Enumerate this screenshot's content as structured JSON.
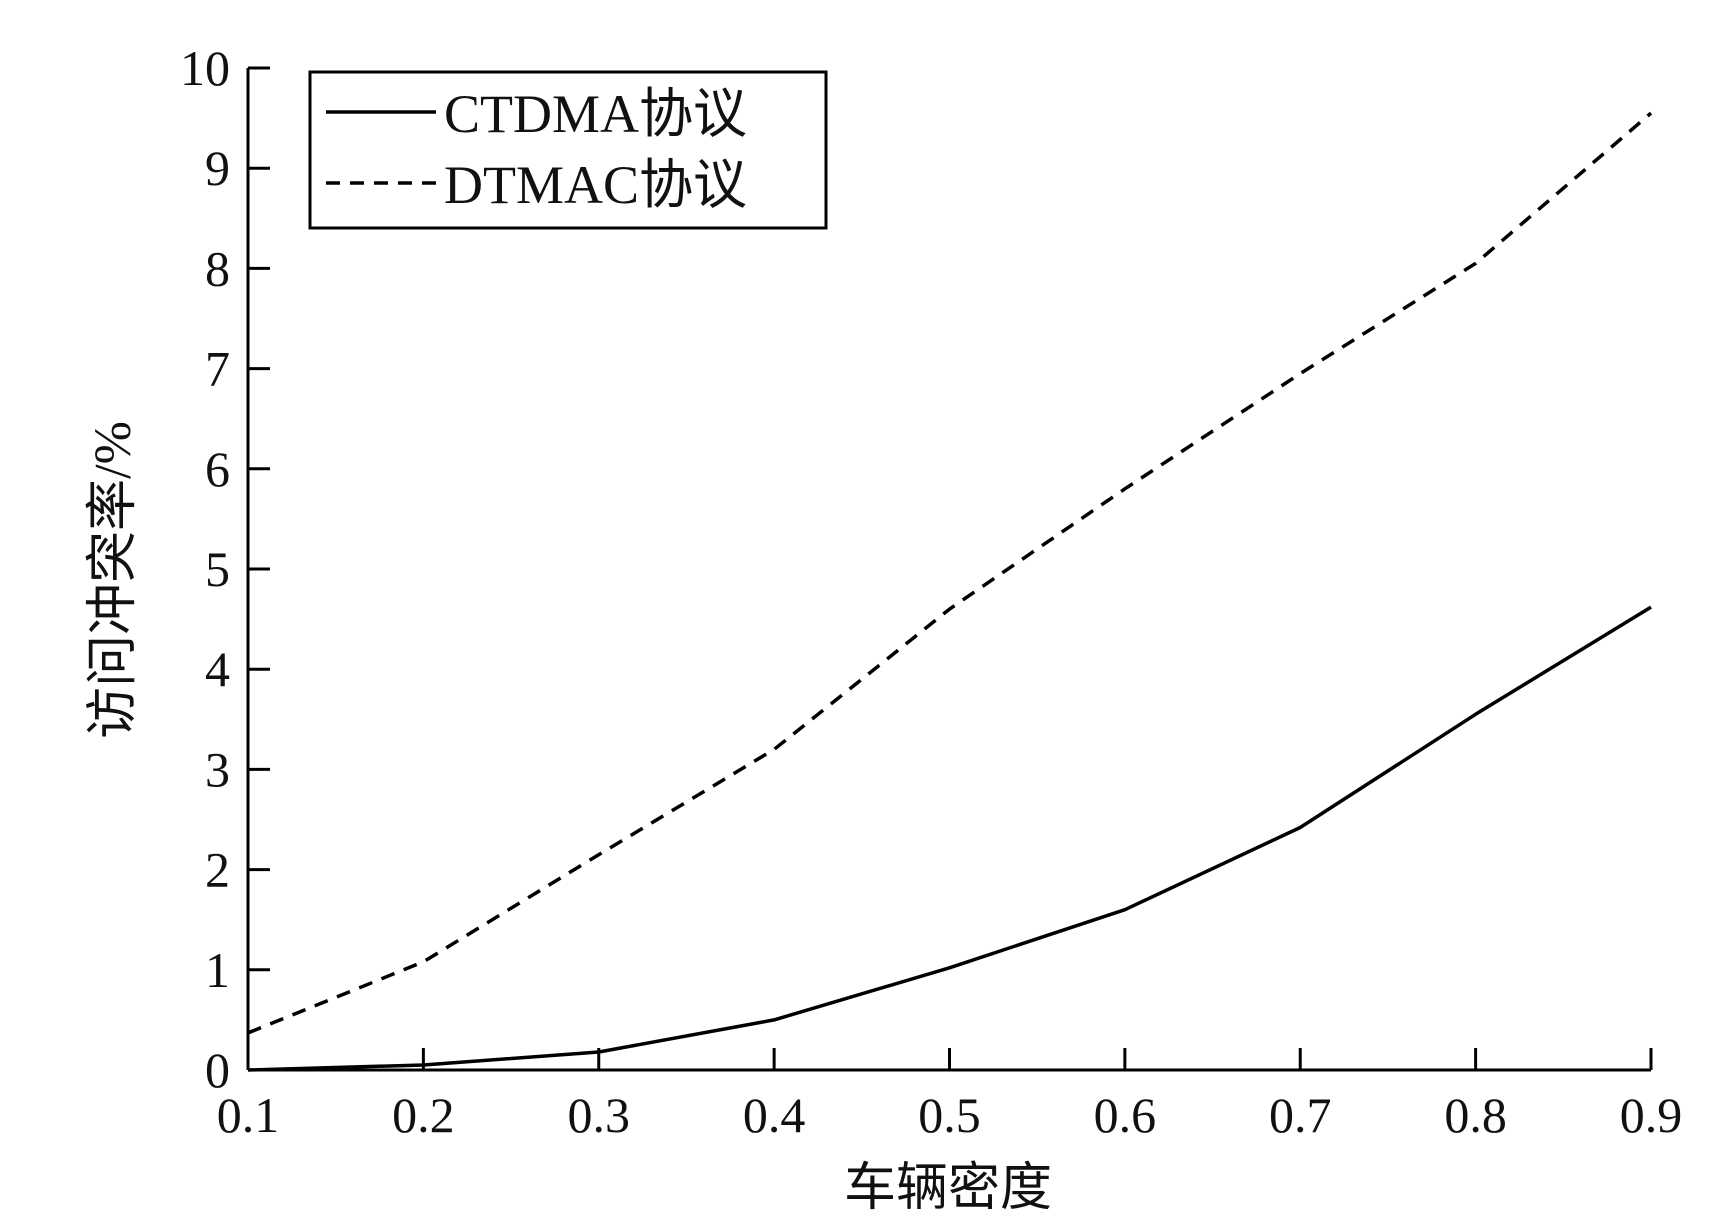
{
  "chart_data": {
    "type": "line",
    "title": "",
    "xlabel": "车辆密度",
    "ylabel": "访问冲突率/%",
    "x": [
      0.1,
      0.2,
      0.3,
      0.4,
      0.5,
      0.6,
      0.7,
      0.8,
      0.9
    ],
    "xlim": [
      0.1,
      0.9
    ],
    "ylim": [
      0,
      10
    ],
    "xticks": [
      "0.1",
      "0.2",
      "0.3",
      "0.4",
      "0.5",
      "0.6",
      "0.7",
      "0.8",
      "0.9"
    ],
    "yticks": [
      "0",
      "1",
      "2",
      "3",
      "4",
      "5",
      "6",
      "7",
      "8",
      "9",
      "10"
    ],
    "grid": false,
    "legend_position": "top-left",
    "series": [
      {
        "name": "CTDMA协议",
        "style": "solid",
        "color": "#000000",
        "values": [
          0.0,
          0.05,
          0.18,
          0.5,
          1.02,
          1.6,
          2.42,
          3.55,
          4.62
        ]
      },
      {
        "name": "DTMAC协议",
        "style": "dashed",
        "color": "#000000",
        "values": [
          0.37,
          1.08,
          2.15,
          3.2,
          4.6,
          5.8,
          6.95,
          8.05,
          9.55
        ]
      }
    ]
  }
}
